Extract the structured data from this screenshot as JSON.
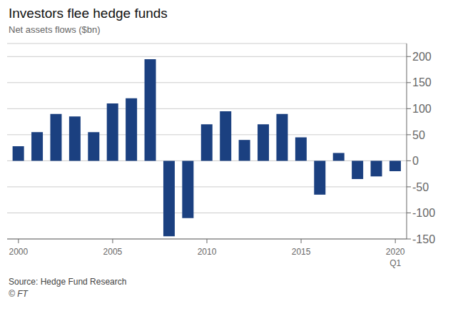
{
  "chart_data": {
    "type": "bar",
    "title": "Investors flee hedge funds",
    "subtitle": "Net assets flows ($bn)",
    "x": [
      2000,
      2001,
      2002,
      2003,
      2004,
      2005,
      2006,
      2007,
      2008,
      2009,
      2010,
      2011,
      2012,
      2013,
      2014,
      2015,
      2016,
      2017,
      2018,
      2019,
      2020
    ],
    "values": [
      28,
      55,
      90,
      85,
      55,
      110,
      120,
      195,
      -145,
      -110,
      70,
      95,
      40,
      70,
      90,
      45,
      -65,
      15,
      -35,
      -30,
      -20
    ],
    "color": "#1b4080",
    "xlim": [
      1999.4,
      2020.6
    ],
    "xticks": [
      2000,
      2005,
      2010,
      2015,
      2020
    ],
    "ylim": [
      -150,
      225
    ],
    "yticks": [
      -150,
      -100,
      -50,
      0,
      50,
      100,
      150,
      200
    ],
    "grid": true,
    "annotations": [
      {
        "text": "Q1",
        "x": 2020
      },
      {
        "text": "Source: Hedge Fund Research"
      },
      {
        "text": "© FT"
      }
    ]
  }
}
